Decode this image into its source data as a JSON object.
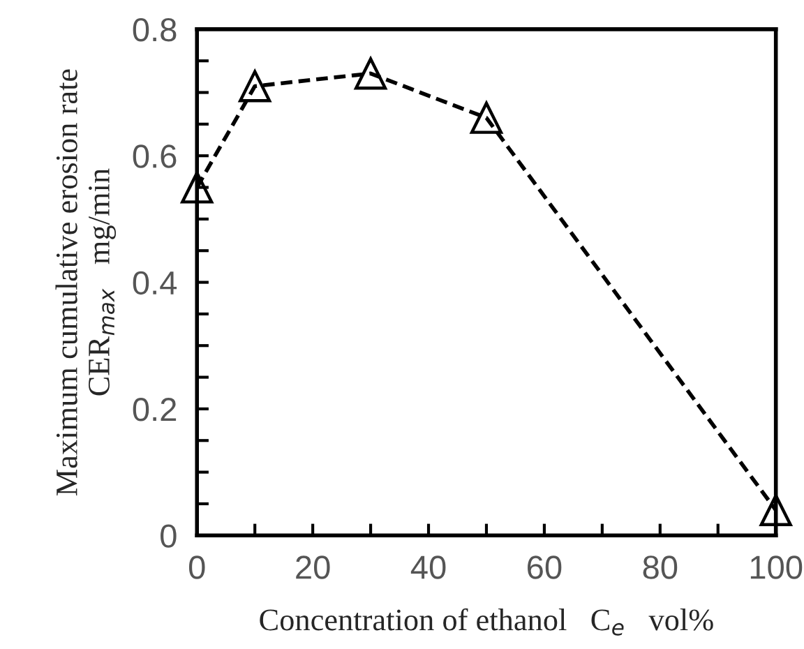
{
  "chart_data": {
    "type": "line",
    "xlabel": "Concentration of ethanol   C$_{e}$   vol%",
    "ylabel": "Maximum cumulative erosion rate\nCER$_{max}$   mg/min",
    "x": [
      0,
      10,
      30,
      50,
      100
    ],
    "series": [
      {
        "color": "#000000",
        "values": [
          0.55,
          0.71,
          0.73,
          0.66,
          0.04
        ]
      }
    ],
    "xlim": [
      0,
      100
    ],
    "ylim": [
      0,
      0.8
    ],
    "xticks": [
      0,
      20,
      40,
      60,
      80,
      100
    ],
    "yticks": [
      0,
      0.2,
      0.4,
      0.6,
      0.8
    ],
    "marker": "triangle",
    "line_style": "dashed",
    "grid": false,
    "legend": false
  }
}
